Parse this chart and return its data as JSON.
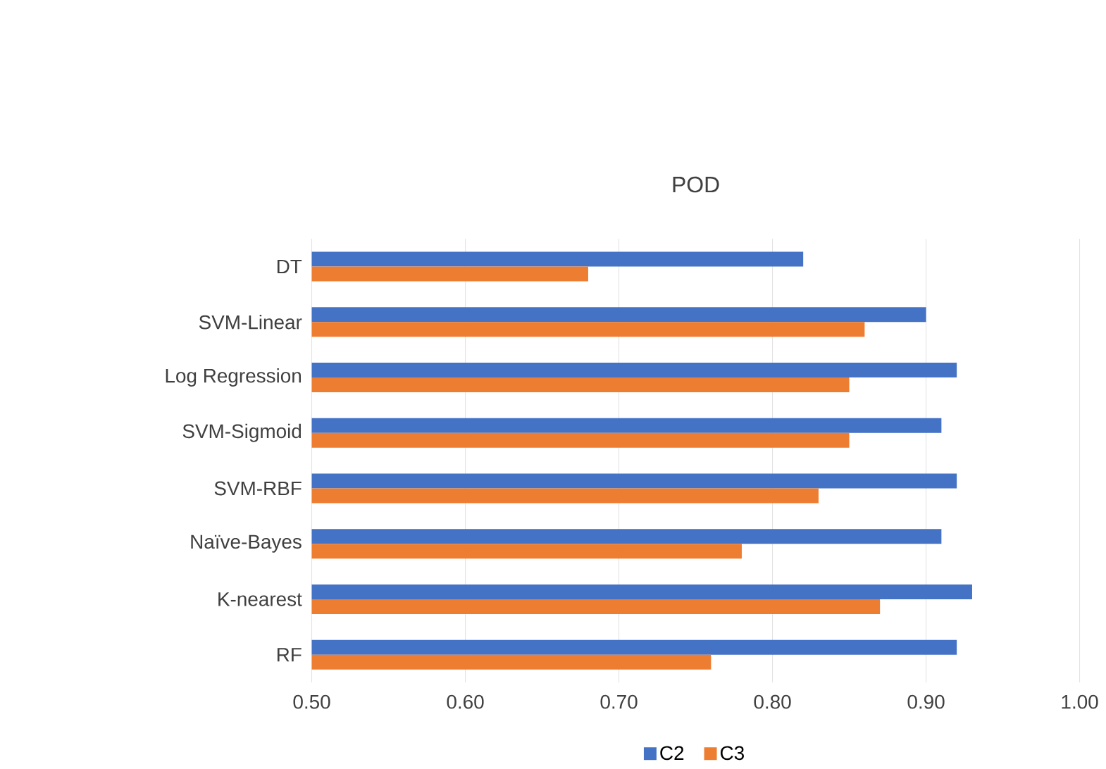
{
  "chart_data": {
    "type": "bar",
    "orientation": "horizontal",
    "title": "POD",
    "categories": [
      "DT",
      "SVM-Linear",
      "Log Regression",
      "SVM-Sigmoid",
      "SVM-RBF",
      "Naïve-Bayes",
      "K-nearest",
      "RF"
    ],
    "series": [
      {
        "name": "C2",
        "color": "#4472c4",
        "values": [
          0.82,
          0.9,
          0.92,
          0.91,
          0.92,
          0.91,
          0.93,
          0.92
        ]
      },
      {
        "name": "C3",
        "color": "#ed7d31",
        "values": [
          0.68,
          0.86,
          0.85,
          0.85,
          0.83,
          0.78,
          0.87,
          0.76
        ]
      }
    ],
    "xlim": [
      0.5,
      1.0
    ],
    "xticks": [
      {
        "value": 0.5,
        "label": "0.50"
      },
      {
        "value": 0.6,
        "label": "0.60"
      },
      {
        "value": 0.7,
        "label": "0.70"
      },
      {
        "value": 0.8,
        "label": "0.80"
      },
      {
        "value": 0.9,
        "label": "0.90"
      },
      {
        "value": 1.0,
        "label": "1.00"
      }
    ],
    "grid": "x",
    "legend": "bottom"
  }
}
